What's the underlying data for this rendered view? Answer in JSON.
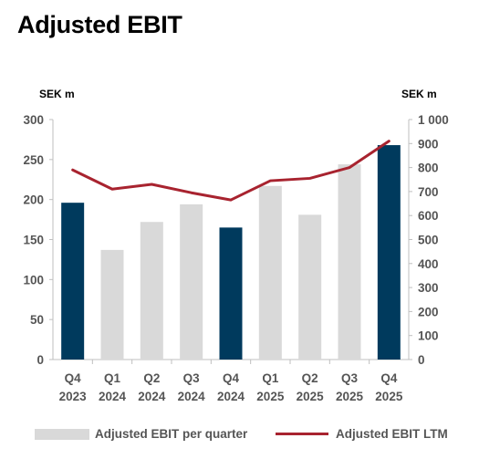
{
  "title": "Adjusted EBIT",
  "chart_data": {
    "type": "bar",
    "title": "Adjusted EBIT",
    "y_unit_left": "SEK m",
    "y_unit_right": "SEK m",
    "categories": [
      [
        "Q4",
        "2023"
      ],
      [
        "Q1",
        "2024"
      ],
      [
        "Q2",
        "2024"
      ],
      [
        "Q3",
        "2024"
      ],
      [
        "Q4",
        "2024"
      ],
      [
        "Q1",
        "2025"
      ],
      [
        "Q2",
        "2025"
      ],
      [
        "Q3",
        "2025"
      ],
      [
        "Q4",
        "2025"
      ]
    ],
    "highlighted": [
      true,
      false,
      false,
      false,
      true,
      false,
      false,
      false,
      true
    ],
    "ylim_left": [
      0,
      300
    ],
    "yticks_left": [
      "0",
      "50",
      "100",
      "150",
      "200",
      "250",
      "300"
    ],
    "ylim_right": [
      0,
      1000
    ],
    "yticks_right": [
      "0",
      "100",
      "200",
      "300",
      "400",
      "500",
      "600",
      "700",
      "800",
      "900",
      "1 000"
    ],
    "series": [
      {
        "name": "Adjusted EBIT per quarter",
        "type": "bar",
        "axis": "left",
        "values": [
          196,
          137,
          172,
          194,
          165,
          217,
          181,
          244,
          268
        ]
      },
      {
        "name": "Adjusted EBIT LTM",
        "type": "line",
        "axis": "right",
        "values": [
          790,
          710,
          730,
          695,
          665,
          745,
          755,
          800,
          910
        ]
      }
    ],
    "colors": {
      "bar": "#d9d9d9",
      "bar_highlight": "#003a5d",
      "line": "#a8232f",
      "axis": "#bfbfbf",
      "tick": "#555555"
    },
    "grid": false,
    "legend_position": "bottom"
  }
}
